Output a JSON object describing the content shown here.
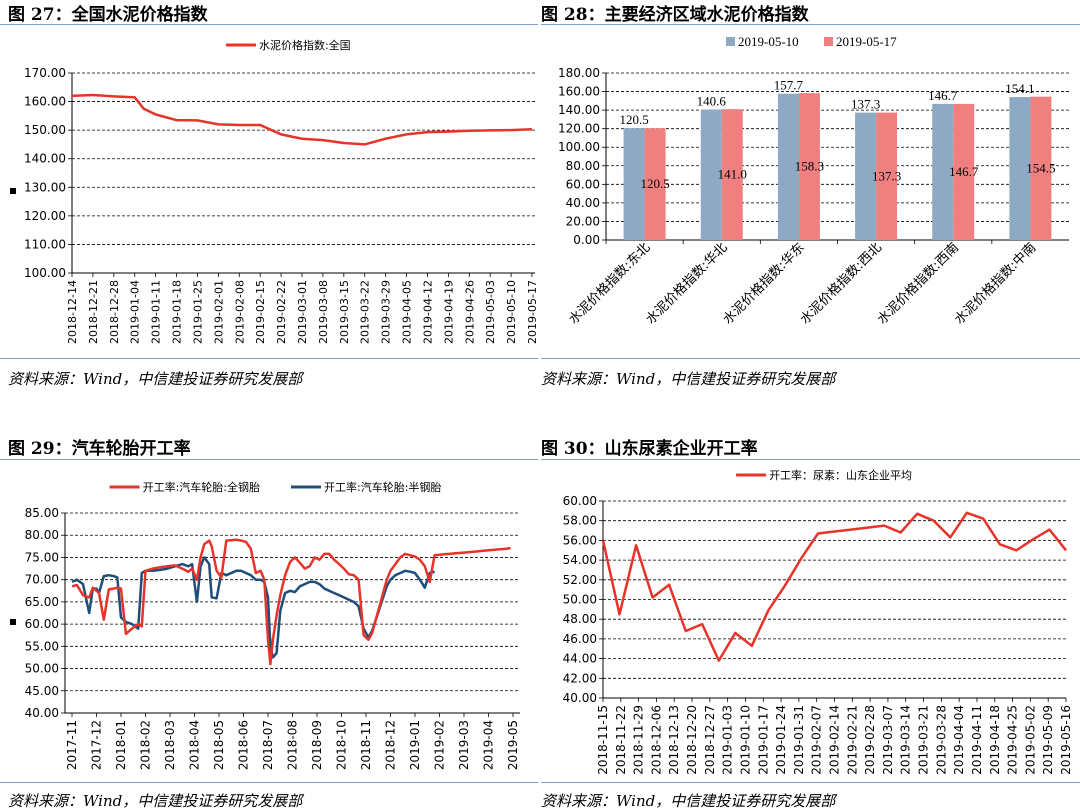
{
  "titles": {
    "fig27": "图 27：全国水泥价格指数",
    "fig28": "图 28：主要经济区域水泥价格指数",
    "fig29": "图 29：汽车轮胎开工率",
    "fig30": "图 30：山东尿素企业开工率"
  },
  "source_text": "资料来源：Wind，中信建投证券研究发展部",
  "colors": {
    "red": "#e8332a",
    "navy": "#1f4e79",
    "bar_blue": "#8da9c4",
    "bar_pink": "#f08080",
    "rule": "#7fa0c8"
  },
  "chart_data": [
    {
      "id": "fig27",
      "type": "line",
      "series": [
        {
          "name": "水泥价格指数:全国",
          "color": "#e8332a",
          "x": [
            "2018-12-14",
            "2018-12-21",
            "2018-12-28",
            "2019-01-04",
            "2019-01-07",
            "2019-01-11",
            "2019-01-18",
            "2019-01-25",
            "2019-02-01",
            "2019-02-08",
            "2019-02-15",
            "2019-02-22",
            "2019-03-01",
            "2019-03-08",
            "2019-03-15",
            "2019-03-22",
            "2019-03-29",
            "2019-04-05",
            "2019-04-12",
            "2019-04-19",
            "2019-04-26",
            "2019-05-03",
            "2019-05-10",
            "2019-05-17"
          ],
          "values": [
            162,
            162.3,
            161.8,
            161.5,
            157.5,
            155.5,
            153.5,
            153.4,
            152,
            151.8,
            151.8,
            148.5,
            147,
            146.5,
            145.5,
            145,
            147,
            148.5,
            149.3,
            149.5,
            149.8,
            149.9,
            150,
            150.3
          ]
        }
      ],
      "x_ticks": [
        "2018-12-14",
        "2018-12-21",
        "2018-12-28",
        "2019-01-04",
        "2019-01-11",
        "2019-01-18",
        "2019-01-25",
        "2019-02-01",
        "2019-02-08",
        "2019-02-15",
        "2019-02-22",
        "2019-03-01",
        "2019-03-08",
        "2019-03-15",
        "2019-03-22",
        "2019-03-29",
        "2019-04-05",
        "2019-04-12",
        "2019-04-19",
        "2019-04-26",
        "2019-05-03",
        "2019-05-10",
        "2019-05-17"
      ],
      "y_ticks": [
        "100.00",
        "110.00",
        "120.00",
        "130.00",
        "140.00",
        "150.00",
        "160.00",
        "170.00"
      ],
      "ylim": [
        100,
        170
      ],
      "grid": true,
      "legend": "top-center"
    },
    {
      "id": "fig28",
      "type": "bar",
      "categories": [
        "水泥价格指数:东北",
        "水泥价格指数:华北",
        "水泥价格指数:华东",
        "水泥价格指数:西北",
        "水泥价格指数:西南",
        "水泥价格指数:中南"
      ],
      "series": [
        {
          "name": "2019-05-10",
          "color": "#8da9c4",
          "values": [
            120.5,
            140.6,
            157.7,
            137.3,
            146.7,
            154.1
          ],
          "labels": [
            "120.5",
            "140.6",
            "157.7",
            "137.3",
            "146.7",
            "154.1"
          ]
        },
        {
          "name": "2019-05-17",
          "color": "#f08080",
          "values": [
            120.5,
            141.0,
            158.3,
            137.3,
            146.7,
            154.5
          ],
          "labels": [
            "120.5",
            "141.0",
            "158.3",
            "137.3",
            "146.7",
            "154.5"
          ]
        }
      ],
      "y_ticks": [
        "0.00",
        "20.00",
        "40.00",
        "60.00",
        "80.00",
        "100.00",
        "120.00",
        "140.00",
        "160.00",
        "180.00"
      ],
      "ylim": [
        0,
        180
      ],
      "grid": true,
      "legend": "top-center"
    },
    {
      "id": "fig29",
      "type": "line",
      "x_ticks": [
        "2017-11",
        "2017-12",
        "2018-01",
        "2018-02",
        "2018-03",
        "2018-04",
        "2018-05",
        "2018-06",
        "2018-07",
        "2018-08",
        "2018-09",
        "2018-10",
        "2018-11",
        "2018-12",
        "2019-01",
        "2019-02",
        "2019-03",
        "2019-04",
        "2019-05"
      ],
      "y_ticks": [
        "40.00",
        "45.00",
        "50.00",
        "55.00",
        "60.00",
        "65.00",
        "70.00",
        "75.00",
        "80.00",
        "85.00"
      ],
      "ylim": [
        40,
        85
      ],
      "grid": true,
      "legend": "top-center",
      "series": [
        {
          "name": "开工率:汽车轮胎:全钢胎",
          "color": "#e8332a",
          "t": [
            0,
            0.2,
            0.45,
            0.7,
            0.85,
            1.0,
            1.1,
            1.3,
            1.5,
            1.7,
            1.85,
            2.0,
            2.2,
            2.45,
            2.7,
            2.85,
            3.0,
            3.3,
            3.6,
            3.9,
            4.2,
            4.5,
            4.75,
            4.9,
            5.1,
            5.25,
            5.4,
            5.6,
            5.7,
            5.9,
            6.1,
            6.3,
            6.7,
            6.9,
            7.1,
            7.3,
            7.5,
            7.7,
            7.85,
            8.0,
            8.1,
            8.2,
            8.35,
            8.5,
            8.7,
            8.9,
            9.1,
            9.3,
            9.5,
            9.7,
            9.9,
            10.1,
            10.3,
            10.5,
            10.7,
            10.9,
            11.1,
            11.3,
            11.5,
            11.7,
            11.9,
            12.1,
            12.25,
            12.4,
            12.55,
            12.7,
            12.85,
            13.0,
            13.2,
            13.4,
            13.6,
            13.8,
            14.0,
            14.2,
            14.4,
            14.6,
            14.8,
            15.0,
            15.2,
            15.4,
            15.6,
            15.8,
            16.0,
            16.2,
            16.4,
            16.6,
            16.8,
            17.0,
            17.2,
            17.4,
            17.6,
            17.75,
            17.9
          ],
          "values": [
            68.5,
            68.8,
            66.5,
            66,
            68.2,
            67.5,
            67,
            61,
            67.8,
            68,
            68.2,
            68,
            57.8,
            59,
            60,
            59.5,
            72,
            72.5,
            72.8,
            73,
            73.2,
            72.5,
            71.8,
            72.5,
            70,
            75,
            78,
            78.8,
            77.5,
            72,
            70.5,
            78.8,
            79,
            78.8,
            78.5,
            77,
            71.5,
            72,
            70,
            56.5,
            51,
            56.5,
            62,
            66.5,
            71,
            74,
            75,
            73.8,
            72.5,
            73,
            75,
            74.5,
            75.8,
            75.8,
            74.5,
            73.5,
            72.5,
            71.2,
            71,
            70,
            57.5,
            56.5,
            58,
            61,
            64,
            67,
            70,
            72,
            73.5,
            75,
            75.8,
            75.5,
            75.2,
            74.5,
            73,
            69.5,
            75.5,
            75.6,
            75.7,
            75.8,
            75.9,
            76,
            76.1,
            76.2,
            76.3,
            76.4,
            76.5,
            76.6,
            76.7,
            76.8,
            76.9,
            77,
            77.1
          ]
        },
        {
          "name": "开工率:汽车轮胎:半钢胎",
          "color": "#1f4e79",
          "t": [
            0,
            0.2,
            0.45,
            0.7,
            0.85,
            1.0,
            1.1,
            1.3,
            1.5,
            1.7,
            1.85,
            2.0,
            2.2,
            2.45,
            2.7,
            2.85,
            3.0,
            3.3,
            3.6,
            3.9,
            4.2,
            4.5,
            4.75,
            4.9,
            5.1,
            5.25,
            5.4,
            5.6,
            5.7,
            5.9,
            6.1,
            6.3,
            6.7,
            6.9,
            7.1,
            7.3,
            7.5,
            7.7,
            7.85,
            8.0,
            8.1,
            8.2,
            8.35,
            8.5,
            8.7,
            8.9,
            9.1,
            9.3,
            9.5,
            9.7,
            9.9,
            10.1,
            10.3,
            10.5,
            10.7,
            10.9,
            11.1,
            11.3,
            11.5,
            11.7,
            11.9,
            12.1,
            12.25,
            12.4,
            12.55,
            12.7,
            12.85,
            13.0,
            13.2,
            13.4,
            13.6,
            13.8,
            14.0,
            14.2,
            14.4,
            14.6,
            14.8
          ],
          "values": [
            69.5,
            70,
            69,
            62.5,
            68,
            68,
            67,
            70.8,
            71,
            70.8,
            70.5,
            61.5,
            60.5,
            60,
            59,
            71.5,
            72,
            72,
            72.2,
            72.5,
            73,
            73.5,
            73,
            73.5,
            65,
            73,
            75,
            73.5,
            66,
            65.8,
            71.5,
            71,
            72,
            72,
            71.5,
            71,
            70,
            70,
            69.5,
            66,
            55,
            52.5,
            53.5,
            63,
            67,
            67.5,
            67.2,
            68.5,
            69,
            69.5,
            69.5,
            69,
            68,
            67.5,
            67,
            66.5,
            66,
            65.5,
            65,
            64,
            59,
            57,
            58.5,
            61,
            63.5,
            66,
            68.5,
            70,
            71,
            71.5,
            72,
            71.8,
            71.5,
            70,
            68.2,
            71.5,
            71.8
          ]
        }
      ]
    },
    {
      "id": "fig30",
      "type": "line",
      "series": [
        {
          "name": "开工率：尿素：山东企业平均",
          "color": "#e8332a",
          "values": [
            56,
            48.5,
            55.5,
            50.2,
            51.5,
            46.8,
            47.5,
            43.8,
            46.6,
            45.3,
            48.9,
            51.4,
            54.2,
            56.7,
            56.9,
            57.1,
            57.3,
            57.5,
            56.8,
            58.7,
            58.0,
            56.3,
            58.8,
            58.2,
            55.6,
            55.0,
            56.1,
            57.1,
            55.0
          ]
        }
      ],
      "x_ticks": [
        "2018-11-15",
        "2018-11-22",
        "2018-11-29",
        "2018-12-06",
        "2018-12-13",
        "2018-12-20",
        "2018-12-27",
        "2019-01-03",
        "2019-01-10",
        "2019-01-17",
        "2019-01-24",
        "2019-01-31",
        "2019-02-07",
        "2019-02-14",
        "2019-02-21",
        "2019-02-28",
        "2019-03-07",
        "2019-03-14",
        "2019-03-21",
        "2019-03-28",
        "2019-04-04",
        "2019-04-11",
        "2019-04-18",
        "2019-04-25",
        "2019-05-02",
        "2019-05-09",
        "2019-05-16"
      ],
      "y_ticks": [
        "40.00",
        "42.00",
        "44.00",
        "46.00",
        "48.00",
        "50.00",
        "52.00",
        "54.00",
        "56.00",
        "58.00",
        "60.00"
      ],
      "ylim": [
        40,
        60
      ],
      "grid": true,
      "legend": "top-center"
    }
  ]
}
